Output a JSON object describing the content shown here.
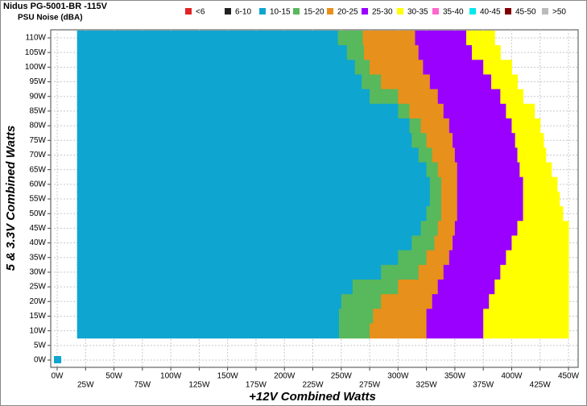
{
  "chart_data": {
    "type": "noisemap",
    "title": "Nidus PG-5001-BR -115V",
    "subtitle": "PSU Noise (dBA)",
    "x_label": "+12V Combined Watts",
    "y_label": "5 & 3.3V Combined Watts",
    "legend": [
      {
        "name": "<6",
        "color": "#e02424"
      },
      {
        "name": "6-10",
        "color": "#222222"
      },
      {
        "name": "10-15",
        "color": "#0ea5d0"
      },
      {
        "name": "15-20",
        "color": "#58b85c"
      },
      {
        "name": "20-25",
        "color": "#e8901c"
      },
      {
        "name": "25-30",
        "color": "#9900ff"
      },
      {
        "name": "30-35",
        "color": "#ffff00"
      },
      {
        "name": "35-40",
        "color": "#ff66cc"
      },
      {
        "name": "40-45",
        "color": "#00e8ee"
      },
      {
        "name": "45-50",
        "color": "#800000"
      },
      {
        "name": ">50",
        "color": "#bbbbbb"
      }
    ],
    "band_legend_start": 2,
    "rows": [
      110,
      105,
      100,
      95,
      90,
      85,
      80,
      75,
      70,
      65,
      60,
      55,
      50,
      45,
      40,
      35,
      30,
      25,
      20,
      15,
      10
    ],
    "row_height": 5,
    "edges": [
      [
        17.5,
        247,
        269,
        315,
        360,
        385
      ],
      [
        17.5,
        255,
        270,
        318,
        365,
        390
      ],
      [
        17.5,
        262,
        275,
        322,
        375,
        400
      ],
      [
        17.5,
        268,
        285,
        328,
        382,
        405
      ],
      [
        17.5,
        275,
        300,
        335,
        390,
        410
      ],
      [
        17.5,
        300,
        310,
        340,
        395,
        420
      ],
      [
        17.5,
        310,
        320,
        345,
        400,
        425
      ],
      [
        17.5,
        312,
        325,
        348,
        403,
        428
      ],
      [
        17.5,
        318,
        330,
        350,
        405,
        430
      ],
      [
        17.5,
        325,
        335,
        352,
        407,
        435
      ],
      [
        17.5,
        328,
        338,
        352,
        410,
        440
      ],
      [
        17.5,
        328,
        338,
        352,
        410,
        442
      ],
      [
        17.5,
        325,
        338,
        352,
        410,
        445
      ],
      [
        17.5,
        320,
        335,
        350,
        405,
        450
      ],
      [
        17.5,
        312,
        332,
        348,
        400,
        450
      ],
      [
        17.5,
        300,
        325,
        345,
        395,
        450
      ],
      [
        17.5,
        285,
        318,
        340,
        390,
        450
      ],
      [
        17.5,
        260,
        300,
        335,
        385,
        450
      ],
      [
        17.5,
        250,
        285,
        330,
        380,
        450
      ],
      [
        17.5,
        248,
        278,
        325,
        375,
        450
      ],
      [
        17.5,
        248,
        275,
        325,
        375,
        450
      ]
    ],
    "point": {
      "x": 0,
      "y": 0,
      "legend_index": 2
    },
    "xlim": [
      0,
      450
    ],
    "ylim": [
      0,
      110
    ],
    "xticks": [
      {
        "value": 0,
        "label": "0W"
      },
      {
        "value": 25,
        "label": "25W"
      },
      {
        "value": 50,
        "label": "50W"
      },
      {
        "value": 75,
        "label": "75W"
      },
      {
        "value": 100,
        "label": "100W"
      },
      {
        "value": 125,
        "label": "125W"
      },
      {
        "value": 150,
        "label": "150W"
      },
      {
        "value": 175,
        "label": "175W"
      },
      {
        "value": 200,
        "label": "200W"
      },
      {
        "value": 225,
        "label": "225W"
      },
      {
        "value": 250,
        "label": "250W"
      },
      {
        "value": 275,
        "label": "275W"
      },
      {
        "value": 300,
        "label": "300W"
      },
      {
        "value": 325,
        "label": "325W"
      },
      {
        "value": 350,
        "label": "350W"
      },
      {
        "value": 375,
        "label": "375W"
      },
      {
        "value": 400,
        "label": "400W"
      },
      {
        "value": 425,
        "label": "425W"
      },
      {
        "value": 450,
        "label": "450W"
      }
    ],
    "yticks": [
      {
        "value": 0,
        "label": "0W"
      },
      {
        "value": 5,
        "label": "5W"
      },
      {
        "value": 10,
        "label": "10W"
      },
      {
        "value": 15,
        "label": "15W"
      },
      {
        "value": 20,
        "label": "20W"
      },
      {
        "value": 25,
        "label": "25W"
      },
      {
        "value": 30,
        "label": "30W"
      },
      {
        "value": 35,
        "label": "35W"
      },
      {
        "value": 40,
        "label": "40W"
      },
      {
        "value": 45,
        "label": "45W"
      },
      {
        "value": 50,
        "label": "50W"
      },
      {
        "value": 55,
        "label": "55W"
      },
      {
        "value": 60,
        "label": "60W"
      },
      {
        "value": 65,
        "label": "65W"
      },
      {
        "value": 70,
        "label": "70W"
      },
      {
        "value": 75,
        "label": "75W"
      },
      {
        "value": 80,
        "label": "80W"
      },
      {
        "value": 85,
        "label": "85W"
      },
      {
        "value": 90,
        "label": "90W"
      },
      {
        "value": 95,
        "label": "95W"
      },
      {
        "value": 100,
        "label": "100W"
      },
      {
        "value": 105,
        "label": "105W"
      },
      {
        "value": 110,
        "label": "110W"
      }
    ],
    "grid": true
  }
}
